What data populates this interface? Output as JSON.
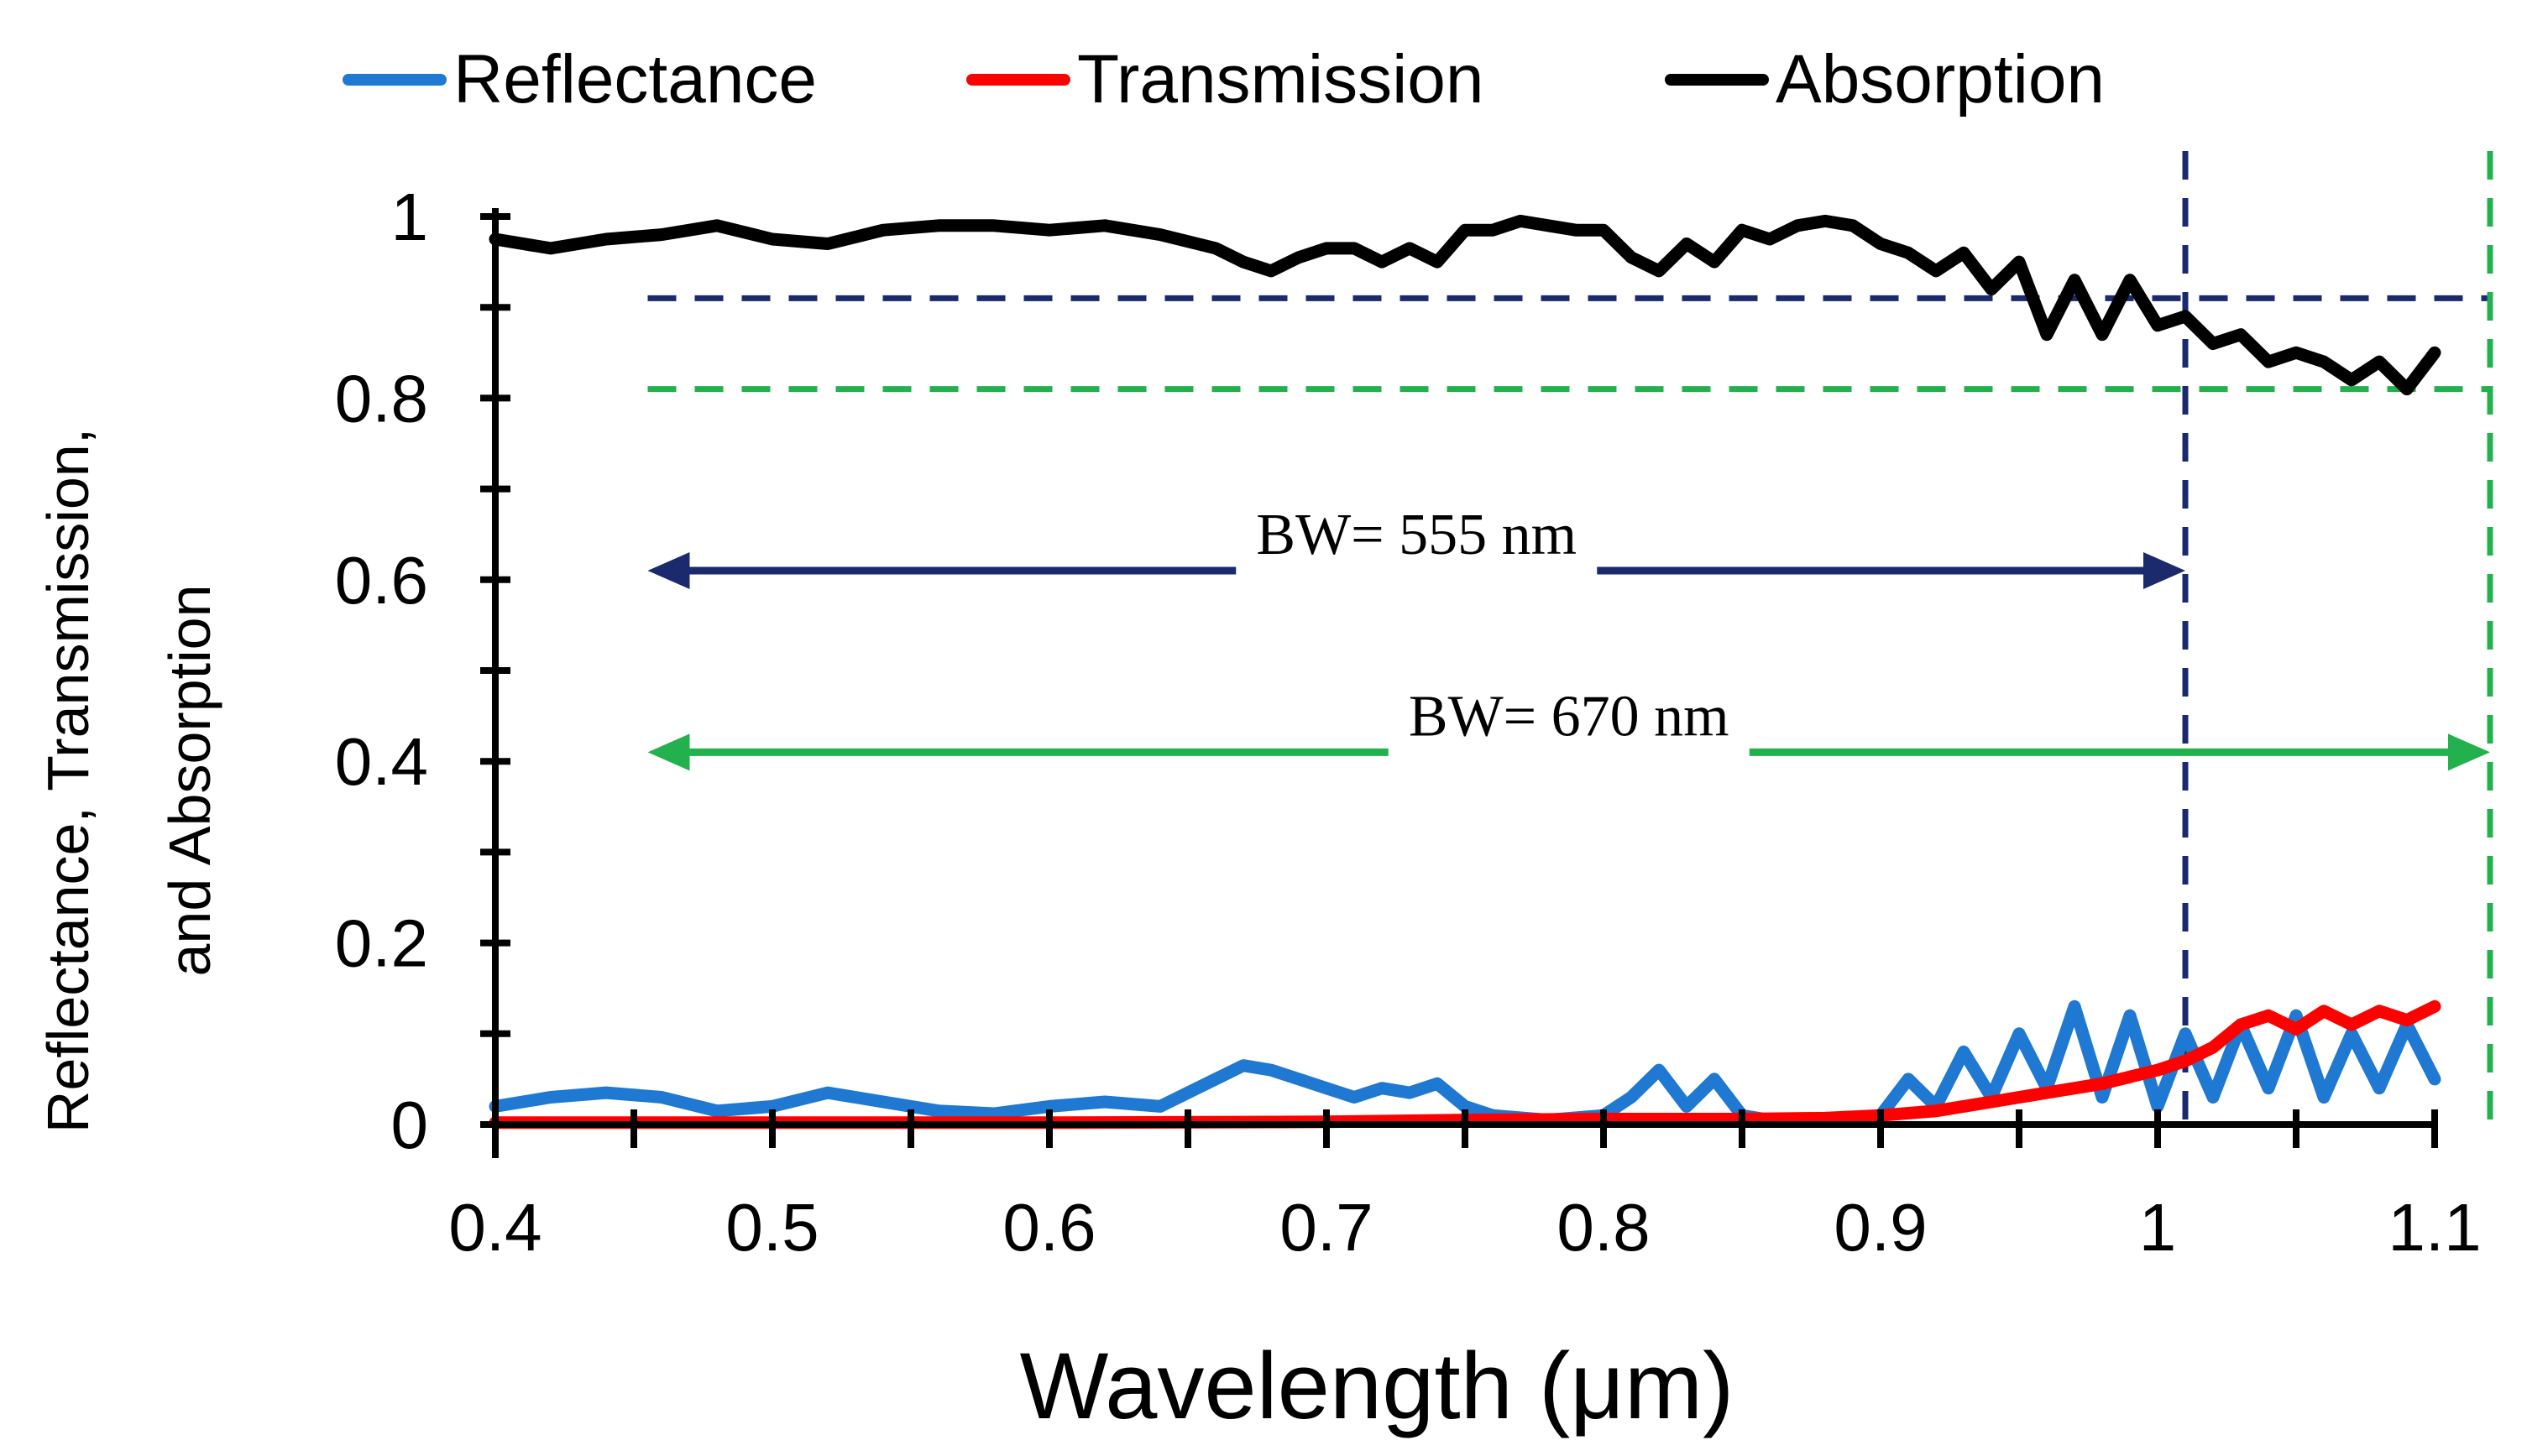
{
  "chart_data": {
    "type": "line",
    "title": "",
    "xlabel": "Wavelength (μm)",
    "ylabel_lines": [
      "Reflectance, Transmission,",
      "and Absorption"
    ],
    "xlim": [
      0.4,
      1.1
    ],
    "ylim": [
      0,
      1
    ],
    "xticks": [
      0.4,
      0.5,
      0.6,
      0.7,
      0.8,
      0.9,
      1.0,
      1.1
    ],
    "xtick_labels": [
      "0.4",
      "0.5",
      "0.6",
      "0.7",
      "0.8",
      "0.9",
      "1",
      "1.1"
    ],
    "yticks": [
      0,
      0.2,
      0.4,
      0.6,
      0.8,
      1.0
    ],
    "ytick_labels": [
      "0",
      "0.2",
      "0.4",
      "0.6",
      "0.8",
      "1"
    ],
    "legend_position": "top",
    "series": [
      {
        "name": "Reflectance",
        "color": "#1f78d1",
        "x": [
          0.4,
          0.42,
          0.44,
          0.46,
          0.48,
          0.5,
          0.52,
          0.54,
          0.56,
          0.58,
          0.6,
          0.62,
          0.64,
          0.66,
          0.67,
          0.68,
          0.69,
          0.7,
          0.71,
          0.72,
          0.73,
          0.74,
          0.75,
          0.76,
          0.78,
          0.8,
          0.81,
          0.82,
          0.83,
          0.84,
          0.85,
          0.86,
          0.87,
          0.88,
          0.9,
          0.91,
          0.92,
          0.93,
          0.94,
          0.95,
          0.96,
          0.97,
          0.98,
          0.99,
          1.0,
          1.01,
          1.02,
          1.03,
          1.04,
          1.05,
          1.06,
          1.07,
          1.08,
          1.09,
          1.1
        ],
        "y": [
          0.02,
          0.03,
          0.035,
          0.03,
          0.015,
          0.02,
          0.035,
          0.025,
          0.015,
          0.012,
          0.02,
          0.025,
          0.02,
          0.05,
          0.065,
          0.06,
          0.05,
          0.04,
          0.03,
          0.04,
          0.035,
          0.045,
          0.02,
          0.01,
          0.005,
          0.01,
          0.03,
          0.06,
          0.02,
          0.05,
          0.01,
          0.005,
          0.004,
          0.004,
          0.01,
          0.05,
          0.02,
          0.08,
          0.03,
          0.1,
          0.04,
          0.13,
          0.03,
          0.12,
          0.02,
          0.1,
          0.03,
          0.11,
          0.04,
          0.12,
          0.03,
          0.1,
          0.04,
          0.11,
          0.05
        ]
      },
      {
        "name": "Transmission",
        "color": "#ff0000",
        "x": [
          0.4,
          0.5,
          0.6,
          0.7,
          0.75,
          0.8,
          0.85,
          0.88,
          0.9,
          0.92,
          0.94,
          0.96,
          0.98,
          1.0,
          1.01,
          1.02,
          1.03,
          1.04,
          1.05,
          1.06,
          1.07,
          1.08,
          1.09,
          1.1
        ],
        "y": [
          0.002,
          0.002,
          0.002,
          0.003,
          0.005,
          0.006,
          0.006,
          0.007,
          0.01,
          0.015,
          0.025,
          0.035,
          0.045,
          0.06,
          0.07,
          0.085,
          0.11,
          0.12,
          0.105,
          0.125,
          0.11,
          0.125,
          0.115,
          0.13
        ]
      },
      {
        "name": "Absorption",
        "color": "#000000",
        "x": [
          0.4,
          0.42,
          0.44,
          0.46,
          0.48,
          0.5,
          0.52,
          0.54,
          0.56,
          0.58,
          0.6,
          0.62,
          0.64,
          0.66,
          0.67,
          0.68,
          0.69,
          0.7,
          0.71,
          0.72,
          0.73,
          0.74,
          0.75,
          0.76,
          0.77,
          0.78,
          0.79,
          0.8,
          0.81,
          0.82,
          0.83,
          0.84,
          0.85,
          0.86,
          0.87,
          0.88,
          0.89,
          0.9,
          0.91,
          0.92,
          0.93,
          0.94,
          0.95,
          0.96,
          0.97,
          0.98,
          0.99,
          1.0,
          1.01,
          1.02,
          1.03,
          1.04,
          1.05,
          1.06,
          1.07,
          1.08,
          1.09,
          1.1
        ],
        "y": [
          0.975,
          0.965,
          0.975,
          0.98,
          0.99,
          0.975,
          0.97,
          0.985,
          0.99,
          0.99,
          0.985,
          0.99,
          0.98,
          0.965,
          0.95,
          0.94,
          0.955,
          0.965,
          0.965,
          0.95,
          0.965,
          0.95,
          0.985,
          0.985,
          0.995,
          0.99,
          0.985,
          0.985,
          0.955,
          0.94,
          0.97,
          0.95,
          0.985,
          0.975,
          0.99,
          0.995,
          0.99,
          0.97,
          0.96,
          0.94,
          0.96,
          0.92,
          0.95,
          0.87,
          0.93,
          0.87,
          0.93,
          0.88,
          0.89,
          0.86,
          0.87,
          0.84,
          0.85,
          0.84,
          0.82,
          0.84,
          0.81,
          0.85
        ]
      }
    ],
    "reference_lines": [
      {
        "orientation": "horizontal",
        "value": 0.91,
        "from_x": 0.455,
        "to_x": 1.12,
        "color": "#1a2a6c"
      },
      {
        "orientation": "vertical",
        "value": 1.01,
        "color": "#1a2a6c"
      },
      {
        "orientation": "horizontal",
        "value": 0.81,
        "from_x": 0.455,
        "to_x": 1.12,
        "color": "#22b14c"
      },
      {
        "orientation": "vertical",
        "value": 1.12,
        "color": "#22b14c"
      }
    ],
    "annotations": [
      {
        "text": "BW= 555 nm",
        "color": "#1a2a6c",
        "from_x": 0.455,
        "to_x": 1.01,
        "y": 0.61
      },
      {
        "text": "BW= 670 nm",
        "color": "#22b14c",
        "from_x": 0.455,
        "to_x": 1.12,
        "y": 0.41
      }
    ]
  }
}
